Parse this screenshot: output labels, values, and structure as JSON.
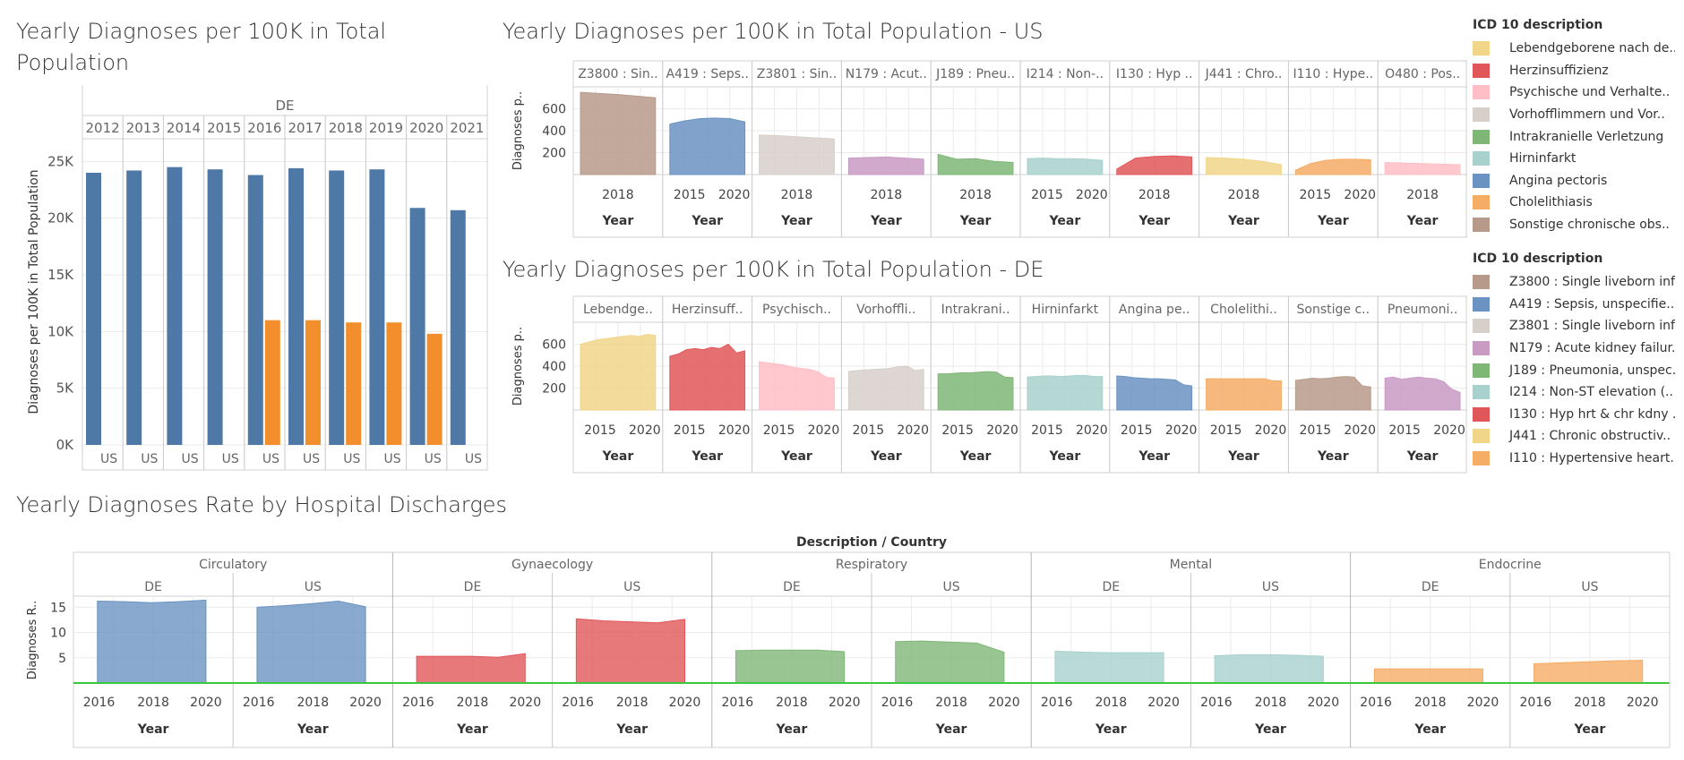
{
  "panels": {
    "total": {
      "title": "Yearly Diagnoses per 100K in Total Population"
    },
    "us": {
      "title": "Yearly Diagnoses per 100K in Total Population - US"
    },
    "de": {
      "title": "Yearly Diagnoses per 100K in Total Population - DE"
    },
    "discharge": {
      "title": "Yearly Diagnoses Rate by Hospital Discharges"
    }
  },
  "legends": {
    "us": {
      "title": "ICD 10 description",
      "items": [
        {
          "label": "Lebendgeborene nach de..",
          "color": "#f1d68a"
        },
        {
          "label": "Herzinsuffizienz",
          "color": "#e15759"
        },
        {
          "label": "Psychische und Verhalte..",
          "color": "#ffbec5"
        },
        {
          "label": "Vorhofflimmern und Vor..",
          "color": "#d7cfca"
        },
        {
          "label": "Intrakranielle Verletzung",
          "color": "#7fb777"
        },
        {
          "label": "Hirninfarkt",
          "color": "#a8d1cd"
        },
        {
          "label": "Angina pectoris",
          "color": "#6b93c2"
        },
        {
          "label": "Cholelithiasis",
          "color": "#f5ac65"
        },
        {
          "label": "Sonstige chronische obs..",
          "color": "#b79a8a"
        }
      ]
    },
    "de": {
      "title": "ICD 10 description",
      "items": [
        {
          "label": "Z3800 : Single liveborn inf..",
          "color": "#b79a8a"
        },
        {
          "label": "A419 : Sepsis, unspecifie..",
          "color": "#6b93c2"
        },
        {
          "label": "Z3801 : Single liveborn inf..",
          "color": "#d7cfca"
        },
        {
          "label": "N179 : Acute kidney failur..",
          "color": "#c99ac4"
        },
        {
          "label": "J189 : Pneumonia, unspec..",
          "color": "#7fb777"
        },
        {
          "label": "I214 : Non-ST elevation (..",
          "color": "#a8d1cd"
        },
        {
          "label": "I130 : Hyp hrt & chr kdny ..",
          "color": "#e15759"
        },
        {
          "label": "J441 : Chronic obstructiv..",
          "color": "#f1d68a"
        },
        {
          "label": "I110 : Hypertensive heart..",
          "color": "#f5ac65"
        }
      ]
    }
  },
  "chart_data": [
    {
      "id": "total",
      "type": "bar",
      "title": "Yearly Diagnoses per 100K in Total Population",
      "column_header": "DE",
      "row_label": "US",
      "ylabel": "Diagnoses per 100K in Total Population",
      "ylim": [
        0,
        27000
      ],
      "y_ticks": [
        "25K",
        "20K",
        "15K",
        "10K",
        "5K",
        "0K"
      ],
      "y_tick_values": [
        25000,
        20000,
        15000,
        10000,
        5000,
        0
      ],
      "categories": [
        "2012",
        "2013",
        "2014",
        "2015",
        "2016",
        "2017",
        "2018",
        "2019",
        "2020",
        "2021"
      ],
      "series": [
        {
          "name": "DE",
          "color": "#4e79a7",
          "values": [
            24000,
            24200,
            24500,
            24300,
            23800,
            24400,
            24200,
            24300,
            20900,
            20700
          ]
        },
        {
          "name": "US",
          "color": "#f28e2b",
          "values": [
            null,
            null,
            null,
            null,
            11000,
            11000,
            10800,
            10800,
            9800,
            null
          ]
        }
      ]
    },
    {
      "id": "us",
      "type": "area",
      "title": "Yearly Diagnoses per 100K in Total Population - US",
      "ylabel": "Diagnoses p..",
      "xlabel": "Year",
      "ylim": [
        0,
        800
      ],
      "y_ticks": [
        600,
        400,
        200
      ],
      "panels": [
        {
          "header": "Z3800 : Sin..",
          "color": "#b79a8a",
          "x_ticks": [
            "2018"
          ],
          "x": [
            2016,
            2017,
            2018,
            2019,
            2020
          ],
          "y": [
            750,
            740,
            730,
            715,
            700
          ]
        },
        {
          "header": "A419 : Seps..",
          "color": "#6b93c2",
          "x_ticks": [
            "2015",
            "2020"
          ],
          "x": [
            2015,
            2016,
            2017,
            2018,
            2019,
            2020
          ],
          "y": [
            460,
            490,
            510,
            515,
            510,
            480
          ]
        },
        {
          "header": "Z3801 : Sin..",
          "color": "#d7cfca",
          "x_ticks": [
            "2018"
          ],
          "x": [
            2016,
            2017,
            2018,
            2019,
            2020
          ],
          "y": [
            360,
            355,
            345,
            335,
            325
          ]
        },
        {
          "header": "N179 : Acut..",
          "color": "#c99ac4",
          "x_ticks": [
            "2018"
          ],
          "x": [
            2016,
            2017,
            2018,
            2019,
            2020
          ],
          "y": [
            150,
            155,
            160,
            150,
            140
          ]
        },
        {
          "header": "J189 : Pneu..",
          "color": "#7fb777",
          "x_ticks": [
            "2018"
          ],
          "x": [
            2016,
            2017,
            2018,
            2019,
            2020
          ],
          "y": [
            185,
            140,
            145,
            120,
            110
          ]
        },
        {
          "header": "I214 : Non-..",
          "color": "#a8d1cd",
          "x_ticks": [
            "2015",
            "2020"
          ],
          "x": [
            2015,
            2016,
            2017,
            2018,
            2019,
            2020
          ],
          "y": [
            145,
            150,
            145,
            145,
            140,
            130
          ]
        },
        {
          "header": "I130 : Hyp ..",
          "color": "#e15759",
          "x_ticks": [
            "2018"
          ],
          "x": [
            2016,
            2017,
            2018,
            2019,
            2020
          ],
          "y": [
            50,
            150,
            165,
            170,
            160
          ]
        },
        {
          "header": "J441 : Chro..",
          "color": "#f1d68a",
          "x_ticks": [
            "2018"
          ],
          "x": [
            2016,
            2017,
            2018,
            2019,
            2020
          ],
          "y": [
            155,
            150,
            140,
            120,
            90
          ]
        },
        {
          "header": "I110 : Hype..",
          "color": "#f5ac65",
          "x_ticks": [
            "2015",
            "2020"
          ],
          "x": [
            2015,
            2016,
            2017,
            2018,
            2019,
            2020
          ],
          "y": [
            40,
            100,
            130,
            140,
            140,
            135
          ]
        },
        {
          "header": "O480 : Pos..",
          "color": "#ffbec5",
          "x_ticks": [
            "2018"
          ],
          "x": [
            2016,
            2017,
            2018,
            2019,
            2020
          ],
          "y": [
            110,
            105,
            100,
            95,
            90
          ]
        }
      ]
    },
    {
      "id": "de",
      "type": "area",
      "title": "Yearly Diagnoses per 100K in Total Population - DE",
      "ylabel": "Diagnoses p..",
      "xlabel": "Year",
      "ylim": [
        0,
        800
      ],
      "y_ticks": [
        600,
        400,
        200
      ],
      "panels": [
        {
          "header": "Lebendge..",
          "color": "#f1d68a",
          "x_ticks": [
            "2015",
            "2020"
          ],
          "x": [
            2012,
            2013,
            2014,
            2015,
            2016,
            2017,
            2018,
            2019,
            2020,
            2021
          ],
          "y": [
            600,
            620,
            640,
            650,
            660,
            670,
            680,
            670,
            690,
            680
          ]
        },
        {
          "header": "Herzinsuff..",
          "color": "#e15759",
          "x_ticks": [
            "2015",
            "2020"
          ],
          "x": [
            2012,
            2013,
            2014,
            2015,
            2016,
            2017,
            2018,
            2019,
            2020,
            2021
          ],
          "y": [
            490,
            510,
            550,
            560,
            550,
            570,
            560,
            600,
            520,
            540
          ]
        },
        {
          "header": "Psychisch..",
          "color": "#ffbec5",
          "x_ticks": [
            "2015",
            "2020"
          ],
          "x": [
            2012,
            2013,
            2014,
            2015,
            2016,
            2017,
            2018,
            2019,
            2020,
            2021
          ],
          "y": [
            440,
            430,
            420,
            410,
            390,
            380,
            370,
            350,
            300,
            290
          ]
        },
        {
          "header": "Vorhoffli..",
          "color": "#d7cfca",
          "x_ticks": [
            "2015",
            "2020"
          ],
          "x": [
            2012,
            2013,
            2014,
            2015,
            2016,
            2017,
            2018,
            2019,
            2020,
            2021
          ],
          "y": [
            350,
            360,
            365,
            370,
            375,
            380,
            395,
            400,
            360,
            370
          ]
        },
        {
          "header": "Intrakrani..",
          "color": "#7fb777",
          "x_ticks": [
            "2015",
            "2020"
          ],
          "x": [
            2012,
            2013,
            2014,
            2015,
            2016,
            2017,
            2018,
            2019,
            2020,
            2021
          ],
          "y": [
            330,
            330,
            335,
            340,
            340,
            345,
            350,
            345,
            300,
            295
          ]
        },
        {
          "header": "Hirninfarkt",
          "color": "#a8d1cd",
          "x_ticks": [
            "2015",
            "2020"
          ],
          "x": [
            2012,
            2013,
            2014,
            2015,
            2016,
            2017,
            2018,
            2019,
            2020,
            2021
          ],
          "y": [
            300,
            305,
            310,
            310,
            305,
            310,
            315,
            315,
            305,
            305
          ]
        },
        {
          "header": "Angina pe..",
          "color": "#6b93c2",
          "x_ticks": [
            "2015",
            "2020"
          ],
          "x": [
            2012,
            2013,
            2014,
            2015,
            2016,
            2017,
            2018,
            2019,
            2020,
            2021
          ],
          "y": [
            310,
            305,
            295,
            290,
            285,
            285,
            280,
            275,
            230,
            220
          ]
        },
        {
          "header": "Cholelithi..",
          "color": "#f5ac65",
          "x_ticks": [
            "2015",
            "2020"
          ],
          "x": [
            2012,
            2013,
            2014,
            2015,
            2016,
            2017,
            2018,
            2019,
            2020,
            2021
          ],
          "y": [
            285,
            285,
            285,
            285,
            285,
            285,
            285,
            285,
            265,
            265
          ]
        },
        {
          "header": "Sonstige c..",
          "color": "#b79a8a",
          "x_ticks": [
            "2015",
            "2020"
          ],
          "x": [
            2012,
            2013,
            2014,
            2015,
            2016,
            2017,
            2018,
            2019,
            2020,
            2021
          ],
          "y": [
            270,
            280,
            290,
            285,
            290,
            300,
            305,
            300,
            220,
            210
          ]
        },
        {
          "header": "Pneumoni..",
          "color": "#c99ac4",
          "x_ticks": [
            "2015",
            "2020"
          ],
          "x": [
            2012,
            2013,
            2014,
            2015,
            2016,
            2017,
            2018,
            2019,
            2020,
            2021
          ],
          "y": [
            290,
            300,
            280,
            290,
            300,
            290,
            285,
            260,
            190,
            160
          ]
        }
      ]
    },
    {
      "id": "discharge",
      "type": "area",
      "title": "Yearly Diagnoses Rate by Hospital Discharges",
      "header": "Description / Country",
      "ylabel": "Diagnoses R..",
      "xlabel": "Year",
      "ylim": [
        0,
        17
      ],
      "y_ticks": [
        15,
        10,
        5
      ],
      "x_ticks": [
        "2016",
        "2018",
        "2020"
      ],
      "reference_line_color": "#3cc83c",
      "groups": [
        {
          "name": "Circulatory",
          "color": "#6b93c2",
          "panels": [
            {
              "country": "DE",
              "x": [
                2016,
                2017,
                2018,
                2019,
                2020
              ],
              "y": [
                16.2,
                16.1,
                15.9,
                16.1,
                16.4
              ]
            },
            {
              "country": "US",
              "x": [
                2016,
                2017,
                2018,
                2019,
                2020
              ],
              "y": [
                15.0,
                15.3,
                15.7,
                16.2,
                15.1
              ]
            }
          ]
        },
        {
          "name": "Gynaecology",
          "color": "#e15759",
          "panels": [
            {
              "country": "DE",
              "x": [
                2016,
                2017,
                2018,
                2019,
                2020
              ],
              "y": [
                5.3,
                5.3,
                5.3,
                5.1,
                5.8
              ]
            },
            {
              "country": "US",
              "x": [
                2016,
                2017,
                2018,
                2019,
                2020
              ],
              "y": [
                12.7,
                12.3,
                12.1,
                11.9,
                12.6
              ]
            }
          ]
        },
        {
          "name": "Respiratory",
          "color": "#7fb777",
          "panels": [
            {
              "country": "DE",
              "x": [
                2016,
                2017,
                2018,
                2019,
                2020
              ],
              "y": [
                6.4,
                6.5,
                6.5,
                6.5,
                6.2
              ]
            },
            {
              "country": "US",
              "x": [
                2016,
                2017,
                2018,
                2019,
                2020
              ],
              "y": [
                8.2,
                8.3,
                8.1,
                7.9,
                6.1
              ]
            }
          ]
        },
        {
          "name": "Mental",
          "color": "#a8d1cd",
          "panels": [
            {
              "country": "DE",
              "x": [
                2016,
                2017,
                2018,
                2019,
                2020
              ],
              "y": [
                6.3,
                6.1,
                6.0,
                6.0,
                6.0
              ]
            },
            {
              "country": "US",
              "x": [
                2016,
                2017,
                2018,
                2019,
                2020
              ],
              "y": [
                5.4,
                5.6,
                5.6,
                5.5,
                5.3
              ]
            }
          ]
        },
        {
          "name": "Endocrine",
          "color": "#f5ac65",
          "panels": [
            {
              "country": "DE",
              "x": [
                2016,
                2017,
                2018,
                2019,
                2020
              ],
              "y": [
                2.8,
                2.8,
                2.8,
                2.8,
                2.8
              ]
            },
            {
              "country": "US",
              "x": [
                2016,
                2017,
                2018,
                2019,
                2020
              ],
              "y": [
                3.8,
                4.0,
                4.2,
                4.4,
                4.5
              ]
            }
          ]
        }
      ]
    }
  ]
}
